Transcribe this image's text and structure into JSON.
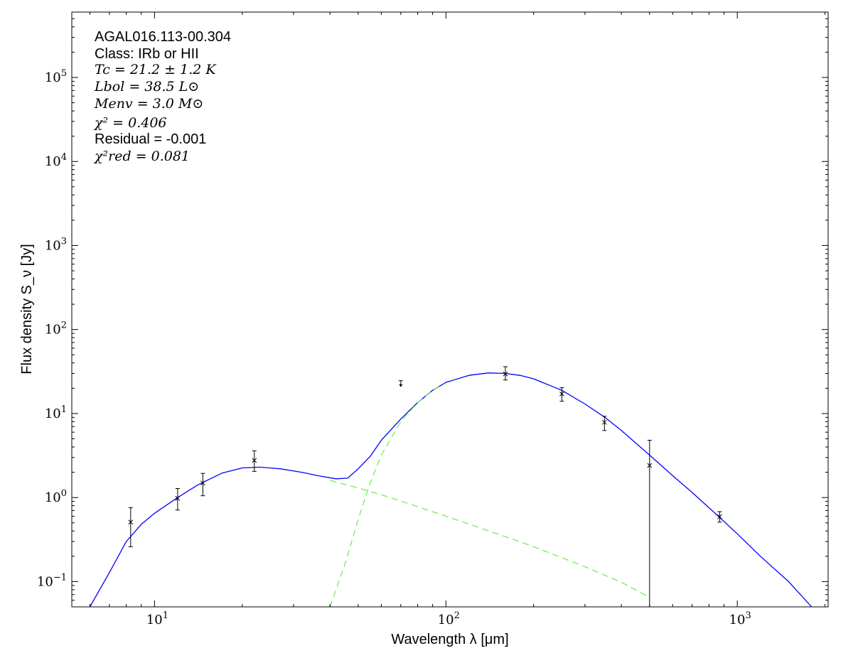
{
  "chart_data": {
    "type": "scatter",
    "title": "",
    "xlabel": "Wavelength λ [μm]",
    "ylabel": "Flux density S_ν [Jy]",
    "xscale": "log",
    "yscale": "log",
    "xlim": [
      5.2,
      2050
    ],
    "ylim": [
      0.05,
      600000
    ],
    "grid": false,
    "legend": "none",
    "annotations": {
      "source": "AGAL016.113-00.304",
      "class": "Class: IRb or HII",
      "tc": "Tc = 21.2 ± 1.2 K",
      "lbol": "Lbol = 38.5 L⊙",
      "menv": "Menv = 3.0 M⊙",
      "chi2": "χ² = 0.406",
      "residual": "Residual = -0.001",
      "chi2red": "χ²red = 0.081"
    },
    "x_ticks": [
      10,
      100,
      1000
    ],
    "x_tick_labels": [
      {
        "base": "10",
        "exp": "1"
      },
      {
        "base": "10",
        "exp": "2"
      },
      {
        "base": "10",
        "exp": "3"
      }
    ],
    "y_ticks": [
      0.1,
      1,
      10,
      100,
      1000,
      10000,
      100000
    ],
    "y_tick_labels": [
      {
        "base": "10",
        "exp": "−1"
      },
      {
        "base": "10",
        "exp": "0"
      },
      {
        "base": "10",
        "exp": "1"
      },
      {
        "base": "10",
        "exp": "2"
      },
      {
        "base": "10",
        "exp": "3"
      },
      {
        "base": "10",
        "exp": "4"
      },
      {
        "base": "10",
        "exp": "5"
      }
    ],
    "measurements": [
      {
        "x": 8.28,
        "y": 0.51,
        "ylo": 0.26,
        "yhi": 0.76
      },
      {
        "x": 12.0,
        "y": 0.98,
        "ylo": 0.71,
        "yhi": 1.28
      },
      {
        "x": 14.65,
        "y": 1.49,
        "ylo": 1.05,
        "yhi": 1.94
      },
      {
        "x": 22.0,
        "y": 2.77,
        "ylo": 2.05,
        "yhi": 3.6
      },
      {
        "x": 160,
        "y": 29.6,
        "ylo": 25.1,
        "yhi": 36.1
      },
      {
        "x": 250,
        "y": 17.1,
        "ylo": 14.0,
        "yhi": 20.3
      },
      {
        "x": 350,
        "y": 7.86,
        "ylo": 6.28,
        "yhi": 9.28
      },
      {
        "x": 500,
        "y": 2.41,
        "ylo": 0.045,
        "yhi": 4.81
      },
      {
        "x": 870,
        "y": 0.59,
        "ylo": 0.51,
        "yhi": 0.68
      }
    ],
    "upper_limits": [
      {
        "x": 70,
        "y": 24.6
      }
    ],
    "series": [
      {
        "style": "solid",
        "color": "#0000ff",
        "x": [
          6.0,
          7.0,
          8.0,
          9.0,
          10.0,
          12.0,
          14.0,
          17.0,
          20.0,
          23.0,
          27.0,
          32.0,
          37.0,
          42.0,
          46.0,
          50.0,
          55.0,
          60.0,
          70.0,
          80.0,
          90.0,
          100.0,
          120.0,
          140.0,
          160.0,
          180.0,
          200.0,
          250.0,
          300.0,
          350.0,
          400.0,
          500.0,
          600.0,
          700.0,
          870.0,
          1000.0,
          1200.0,
          1500.0,
          1800.0
        ],
        "y": [
          0.05,
          0.128,
          0.3,
          0.48,
          0.65,
          1.0,
          1.4,
          1.95,
          2.25,
          2.3,
          2.2,
          2.0,
          1.8,
          1.67,
          1.7,
          2.2,
          3.1,
          4.8,
          8.6,
          13.5,
          18.9,
          23.5,
          28.5,
          30.4,
          30.0,
          28.4,
          25.9,
          18.9,
          13.0,
          9.1,
          6.3,
          3.2,
          1.82,
          1.15,
          0.58,
          0.37,
          0.2,
          0.1,
          0.05
        ]
      },
      {
        "style": "dashed",
        "color": "#66ee44",
        "x": [
          40.0,
          50.0,
          60.0,
          80.0,
          100.0,
          150.0,
          200.0,
          300.0,
          400.0,
          500.0
        ],
        "y": [
          1.6,
          1.3,
          1.08,
          0.78,
          0.6,
          0.37,
          0.26,
          0.15,
          0.098,
          0.065
        ]
      },
      {
        "style": "dashed",
        "color": "#66ee44",
        "x": [
          40.0,
          45.0,
          50.0,
          55.0,
          60.0,
          70.0,
          80.0,
          90.0,
          100.0
        ],
        "y": [
          0.05,
          0.16,
          0.55,
          1.5,
          3.2,
          8.0,
          13.5,
          19.0,
          23.0
        ]
      }
    ]
  }
}
